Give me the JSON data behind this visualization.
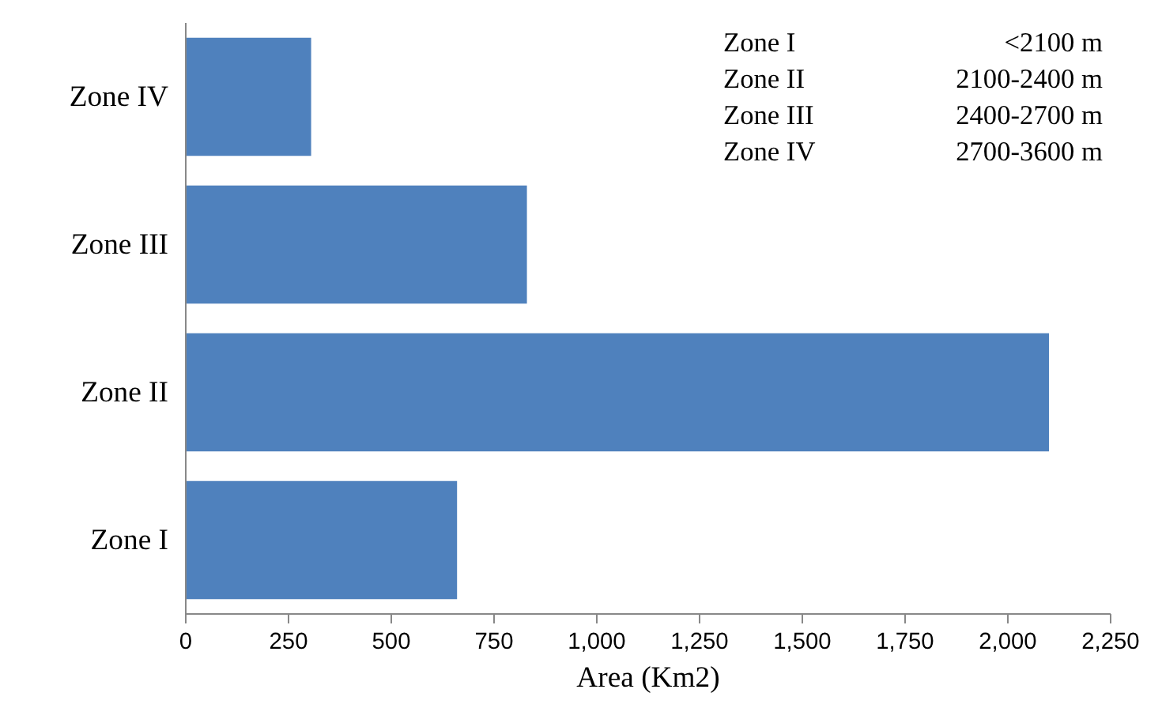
{
  "chart_data": {
    "type": "bar",
    "orientation": "horizontal",
    "xlabel": "Area (Km2)",
    "categories": [
      "Zone IV",
      "Zone III",
      "Zone II",
      "Zone I"
    ],
    "values": [
      305,
      830,
      2100,
      660
    ],
    "color": "#4f81bd",
    "xlim": [
      0,
      2250
    ],
    "xticks": [
      0,
      250,
      500,
      750,
      {
        "value": 1000,
        "label": "1,000"
      },
      {
        "value": 1250,
        "label": "1,250"
      },
      {
        "value": 1500,
        "label": "1,500"
      },
      {
        "value": 1750,
        "label": "1,750"
      },
      {
        "value": 2000,
        "label": "2,000"
      },
      {
        "value": 2250,
        "label": "2,250"
      }
    ],
    "grid": false,
    "annotations": [
      "Zone I",
      "<2100 m",
      "Zone II",
      "2100-2400 m",
      "Zone III",
      "2400-2700 m",
      "Zone IV",
      "2700-3600 m"
    ]
  }
}
